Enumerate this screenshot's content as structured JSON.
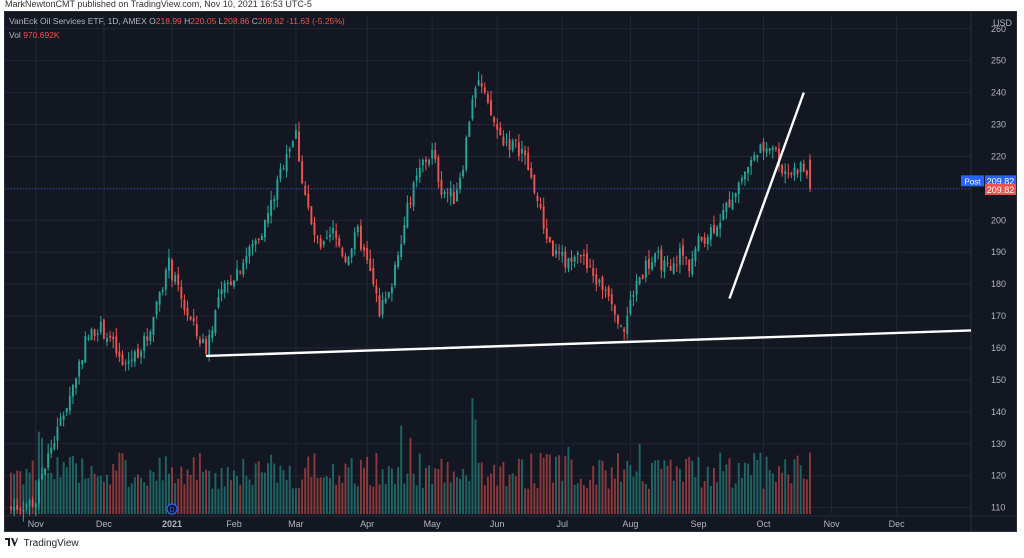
{
  "header": {
    "publisher_text": "MarkNewtonCMT published on TradingView.com, Nov 10, 2021 16:53 UTC-5"
  },
  "footer": {
    "brand_icon": "tradingview-logo-icon",
    "brand_text": "TradingView"
  },
  "legend": {
    "symbol": "VanEck Oil Services ETF, 1D, AMEX",
    "o_label": "O",
    "open": "218.99",
    "h_label": "H",
    "high": "220.05",
    "l_label": "L",
    "low": "208.86",
    "c_label": "C",
    "close": "209.82",
    "change": "-11.63 (-5.25%)",
    "vol_label": "Vol",
    "vol_value": "970.692K"
  },
  "price_axis": {
    "currency": "USD",
    "post_label": "Post",
    "post_value": "209.82",
    "last_value": "209.82"
  },
  "markers": {
    "dividend": "D"
  },
  "colors": {
    "background": "#131722",
    "grid": "#232734",
    "up": "#26a69a",
    "down": "#ef5350",
    "axis_text": "#b2b5be",
    "post_badge": "#2962ff",
    "last_badge": "#ef5350",
    "trendline": "#ffffff"
  },
  "chart_data": {
    "type": "candlestick",
    "title": "VanEck Oil Services ETF, 1D, AMEX",
    "ylabel": "USD",
    "ylim": [
      108,
      264
    ],
    "yticks": [
      110,
      120,
      130,
      140,
      150,
      160,
      170,
      180,
      190,
      200,
      210,
      220,
      230,
      240,
      250,
      260
    ],
    "x_tick_labels": [
      "Nov",
      "Dec",
      "2021",
      "Feb",
      "Mar",
      "Apr",
      "May",
      "Jun",
      "Jul",
      "Aug",
      "Sep",
      "Oct",
      "Nov",
      "Dec"
    ],
    "x_tick_days": [
      8,
      30,
      52,
      72,
      92,
      115,
      136,
      157,
      178,
      200,
      222,
      243,
      265,
      286
    ],
    "x_range_days": [
      0,
      310
    ],
    "price_path": [
      [
        0,
        110
      ],
      [
        8,
        112
      ],
      [
        10,
        121
      ],
      [
        15,
        134
      ],
      [
        20,
        148
      ],
      [
        24,
        162
      ],
      [
        28,
        167
      ],
      [
        32,
        163
      ],
      [
        36,
        154
      ],
      [
        40,
        158
      ],
      [
        44,
        163
      ],
      [
        48,
        178
      ],
      [
        51,
        186
      ],
      [
        55,
        175
      ],
      [
        60,
        164
      ],
      [
        63,
        160
      ],
      [
        67,
        175
      ],
      [
        72,
        183
      ],
      [
        78,
        192
      ],
      [
        82,
        199
      ],
      [
        86,
        211
      ],
      [
        89,
        222
      ],
      [
        92,
        227
      ],
      [
        94,
        213
      ],
      [
        97,
        198
      ],
      [
        100,
        190
      ],
      [
        104,
        196
      ],
      [
        108,
        188
      ],
      [
        112,
        196
      ],
      [
        116,
        183
      ],
      [
        119,
        172
      ],
      [
        122,
        176
      ],
      [
        125,
        191
      ],
      [
        129,
        207
      ],
      [
        133,
        218
      ],
      [
        136,
        221
      ],
      [
        139,
        210
      ],
      [
        143,
        207
      ],
      [
        146,
        218
      ],
      [
        149,
        239
      ],
      [
        151,
        244
      ],
      [
        154,
        235
      ],
      [
        158,
        226
      ],
      [
        161,
        224
      ],
      [
        165,
        222
      ],
      [
        169,
        210
      ],
      [
        172,
        198
      ],
      [
        175,
        190
      ],
      [
        179,
        187
      ],
      [
        183,
        192
      ],
      [
        186,
        185
      ],
      [
        190,
        180
      ],
      [
        193,
        178
      ],
      [
        196,
        170
      ],
      [
        198,
        166
      ],
      [
        201,
        178
      ],
      [
        205,
        186
      ],
      [
        209,
        188
      ],
      [
        213,
        183
      ],
      [
        216,
        190
      ],
      [
        219,
        186
      ],
      [
        222,
        193
      ],
      [
        226,
        197
      ],
      [
        230,
        202
      ],
      [
        234,
        210
      ],
      [
        238,
        217
      ],
      [
        242,
        222
      ],
      [
        246,
        224
      ],
      [
        249,
        216
      ],
      [
        252,
        215
      ],
      [
        255,
        217
      ],
      [
        257,
        214
      ],
      [
        258,
        210
      ]
    ],
    "volume_scale_max": 2000,
    "volume_avg": 750,
    "volume_spikes": [
      {
        "day": 9,
        "value": 1350
      },
      {
        "day": 10,
        "value": 1250
      },
      {
        "day": 118,
        "value": 1000
      },
      {
        "day": 126,
        "value": 1450
      },
      {
        "day": 129,
        "value": 1250
      },
      {
        "day": 149,
        "value": 1900
      },
      {
        "day": 150,
        "value": 1550
      },
      {
        "day": 180,
        "value": 1100
      },
      {
        "day": 203,
        "value": 1150
      },
      {
        "day": 240,
        "value": 1000
      }
    ],
    "trendlines": [
      {
        "name": "support-trendline",
        "from": [
          63,
          157.5
        ],
        "to": [
          310,
          165.5
        ]
      },
      {
        "name": "rising-trendline",
        "from": [
          232,
          175.5
        ],
        "to": [
          256,
          240
        ]
      }
    ],
    "dividend_day": 52
  }
}
